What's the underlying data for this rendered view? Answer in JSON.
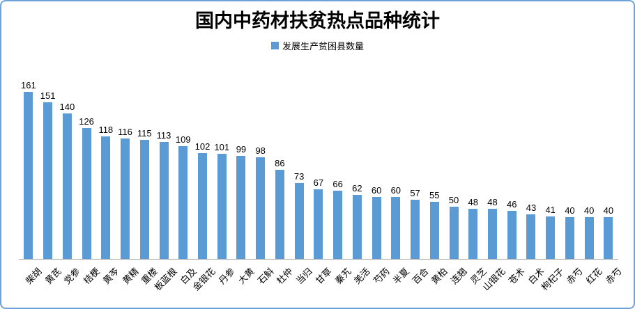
{
  "chart_data": {
    "type": "bar",
    "title": "国内中药材扶贫热点品种统计",
    "legend": "发展生产贫困县数量",
    "legend_position": "top",
    "grid": false,
    "data_labels": true,
    "ylim": [
      0,
      170
    ],
    "bar_color": "#5B9BD5",
    "axis_line_color": "#ABABAB",
    "frame_border_color": "#6FA3D8",
    "categories": [
      "柴胡",
      "黄芪",
      "党参",
      "桔梗",
      "黄芩",
      "黄精",
      "重楼",
      "板蓝根",
      "白及",
      "金银花",
      "丹参",
      "大黄",
      "石斛",
      "杜仲",
      "当归",
      "甘草",
      "秦艽",
      "羌活",
      "芍药",
      "半夏",
      "百合",
      "黄柏",
      "连翘",
      "灵芝",
      "山银花",
      "苍术",
      "白术",
      "枸杞子",
      "赤芍",
      "红花",
      "赤芍"
    ],
    "values": [
      161,
      151,
      140,
      126,
      118,
      116,
      115,
      113,
      109,
      102,
      101,
      99,
      98,
      86,
      73,
      67,
      66,
      62,
      60,
      60,
      57,
      55,
      50,
      48,
      48,
      46,
      43,
      41,
      40,
      40,
      40
    ],
    "xlabel": "",
    "ylabel": ""
  }
}
